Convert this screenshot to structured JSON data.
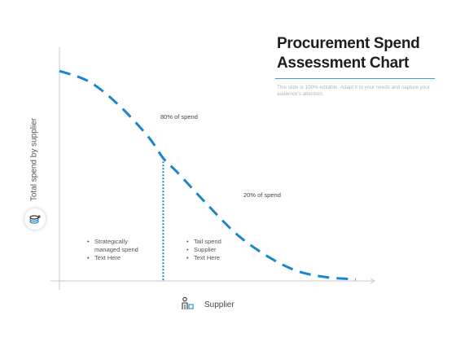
{
  "header": {
    "title_line1": "Procurement Spend",
    "title_line2": "Assessment Chart",
    "subtitle": "This slide is 100% editable. Adapt it to your needs and capture your audience's attention."
  },
  "icons": {
    "y_axis_icon": "coins-icon",
    "x_axis_icon": "supplier-person-icon"
  },
  "colors": {
    "curve": "#1a86cc",
    "axis": "#c9c9c9",
    "accent_rule": "#4a9ad4"
  },
  "chart_data": {
    "type": "line",
    "title": "Procurement Spend Assessment Chart",
    "xlabel": "Supplier",
    "ylabel": "Total spend by supplier",
    "series": [
      {
        "style": "dashed",
        "x": [
          0,
          0.1,
          0.2,
          0.3,
          0.35,
          0.4,
          0.5,
          0.6,
          0.7,
          0.8,
          0.9,
          1.0
        ],
        "y": [
          0.98,
          0.93,
          0.82,
          0.67,
          0.57,
          0.5,
          0.35,
          0.21,
          0.11,
          0.04,
          0.01,
          0.0
        ]
      }
    ],
    "divider_x": 0.35,
    "xlim": [
      0,
      1
    ],
    "ylim": [
      0,
      1
    ],
    "grid": false,
    "annotations": [
      {
        "text": "80% of spend"
      },
      {
        "text": "20% of spend"
      }
    ],
    "left_group": [
      "Strategically",
      "managed spend",
      "Text Here"
    ],
    "right_group": [
      "Tail spend",
      "Supplier",
      "Text Here"
    ]
  }
}
